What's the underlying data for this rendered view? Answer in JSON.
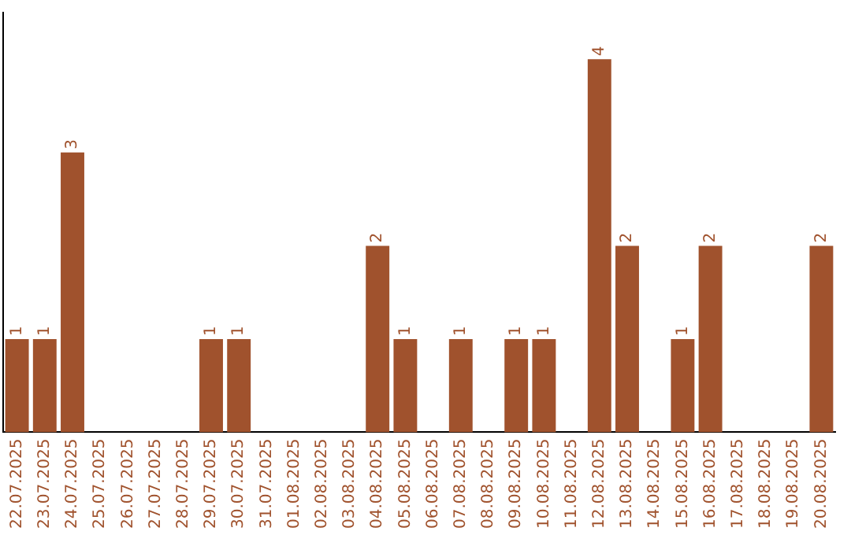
{
  "chart_data": {
    "type": "bar",
    "categories": [
      "22.07.2025",
      "23.07.2025",
      "24.07.2025",
      "25.07.2025",
      "26.07.2025",
      "27.07.2025",
      "28.07.2025",
      "29.07.2025",
      "30.07.2025",
      "31.07.2025",
      "01.08.2025",
      "02.08.2025",
      "03.08.2025",
      "04.08.2025",
      "05.08.2025",
      "06.08.2025",
      "07.08.2025",
      "08.08.2025",
      "09.08.2025",
      "10.08.2025",
      "11.08.2025",
      "12.08.2025",
      "13.08.2025",
      "14.08.2025",
      "15.08.2025",
      "16.08.2025",
      "17.08.2025",
      "18.08.2025",
      "19.08.2025",
      "20.08.2025"
    ],
    "values": [
      1,
      1,
      3,
      0,
      0,
      0,
      0,
      1,
      1,
      0,
      0,
      0,
      0,
      2,
      1,
      0,
      1,
      0,
      1,
      1,
      0,
      4,
      2,
      0,
      1,
      2,
      0,
      0,
      0,
      2
    ],
    "value_labels": [
      "1",
      "1",
      "3",
      null,
      null,
      null,
      null,
      "1",
      "1",
      null,
      null,
      null,
      null,
      "2",
      "1",
      null,
      "1",
      null,
      "1",
      "1",
      null,
      "4",
      "2",
      null,
      "1",
      "2",
      null,
      null,
      null,
      "2"
    ],
    "color": "#a0522d",
    "grid": false,
    "legend": false
  }
}
